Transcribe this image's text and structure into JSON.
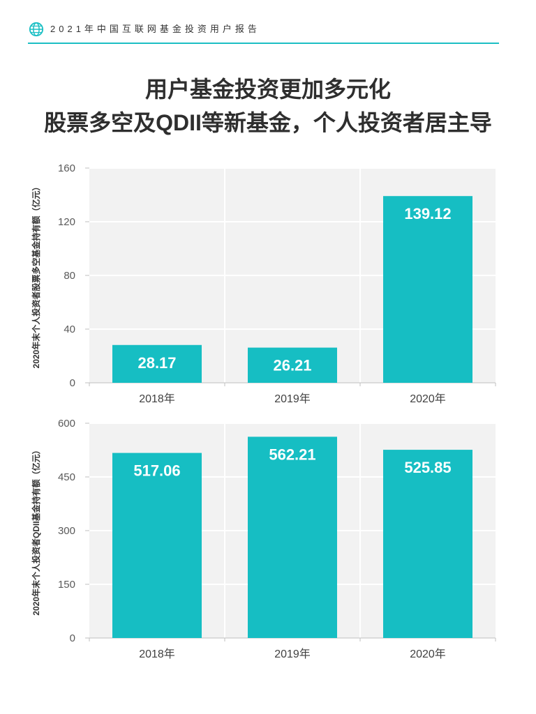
{
  "theme": {
    "accent": "#1bbfc4",
    "bar_color": "#16bec3"
  },
  "header": {
    "icon": "globe-icon",
    "title": "2021年中国互联网基金投资用户报告"
  },
  "headline": {
    "line1": "用户基金投资更加多元化",
    "line2": "股票多空及QDII等新基金，个人投资者居主导"
  },
  "chart_data": [
    {
      "type": "bar",
      "categories": [
        "2018年",
        "2019年",
        "2020年"
      ],
      "values": [
        28.17,
        26.21,
        139.12
      ],
      "ylabel": "2020年末个人投资者股票多空基金持有额（亿元）",
      "ylim": [
        0,
        160
      ],
      "yticks": [
        0,
        40,
        80,
        120,
        160
      ],
      "grid": true,
      "color": "#16bec3"
    },
    {
      "type": "bar",
      "categories": [
        "2018年",
        "2019年",
        "2020年"
      ],
      "values": [
        517.06,
        562.21,
        525.85
      ],
      "ylabel": "2020年末个人投资者QDII基金持有额（亿元）",
      "ylim": [
        0,
        600
      ],
      "yticks": [
        0,
        150,
        300,
        450,
        600
      ],
      "grid": true,
      "color": "#16bec3"
    }
  ]
}
